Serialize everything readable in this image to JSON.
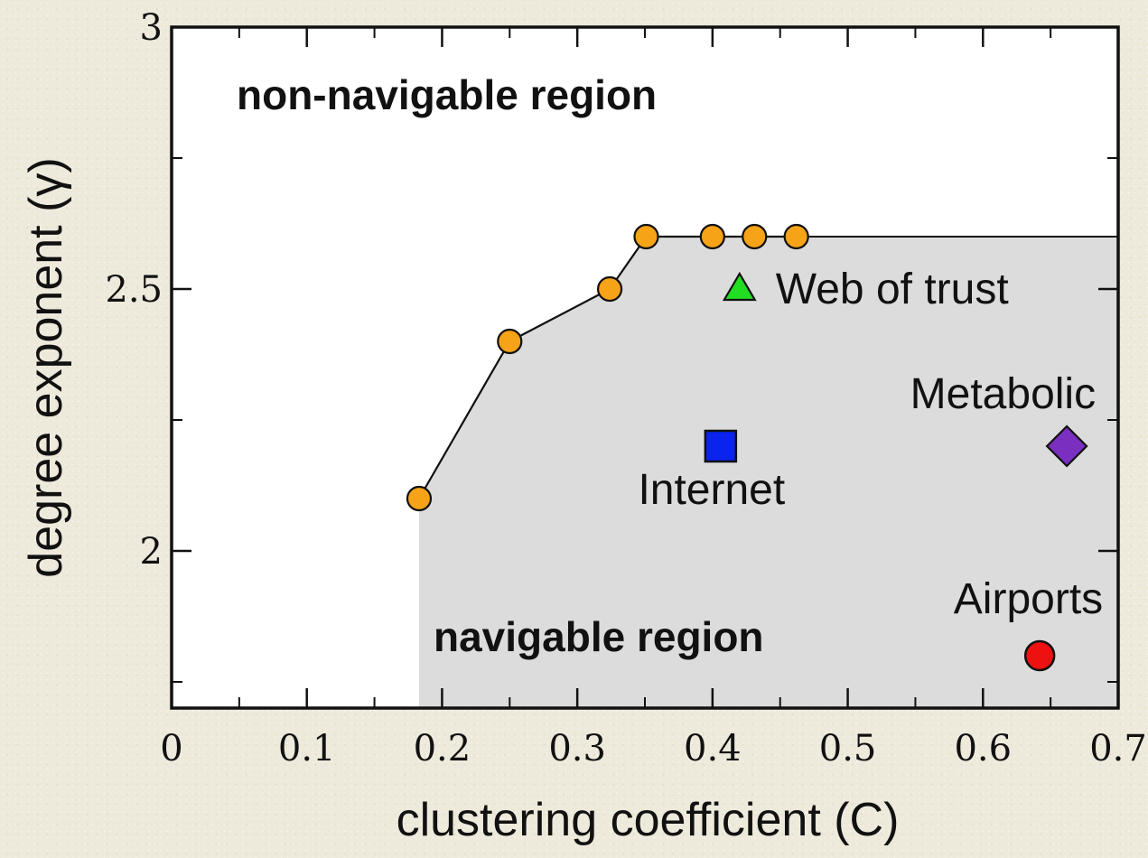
{
  "chart_data": {
    "type": "scatter",
    "title": "",
    "xlabel": "clustering coefficient (C)",
    "ylabel": "degree exponent (γ)",
    "xlim": [
      0,
      0.7
    ],
    "ylim": [
      1.7,
      3
    ],
    "x_ticks": [
      "0",
      "0.1",
      "0.2",
      "0.3",
      "0.4",
      "0.5",
      "0.6",
      "0.7"
    ],
    "x_tick_values": [
      0,
      0.1,
      0.2,
      0.3,
      0.4,
      0.5,
      0.6,
      0.7
    ],
    "y_ticks": [
      "2",
      "2.5",
      "3"
    ],
    "y_tick_values": [
      2,
      2.5,
      3
    ],
    "boundary": {
      "color": "#f7a318",
      "points": [
        {
          "x": 0.183,
          "y": 2.1
        },
        {
          "x": 0.25,
          "y": 2.4
        },
        {
          "x": 0.324,
          "y": 2.5
        },
        {
          "x": 0.351,
          "y": 2.6
        },
        {
          "x": 0.4,
          "y": 2.6
        },
        {
          "x": 0.431,
          "y": 2.6
        },
        {
          "x": 0.462,
          "y": 2.6
        }
      ]
    },
    "networks": [
      {
        "label": "Web of trust",
        "x": 0.42,
        "y": 2.5,
        "marker": "triangle",
        "color": "#22dd22"
      },
      {
        "label": "Internet",
        "x": 0.406,
        "y": 2.2,
        "marker": "square",
        "color": "#0a23ee"
      },
      {
        "label": "Metabolic",
        "x": 0.662,
        "y": 2.2,
        "marker": "diamond",
        "color": "#7a2fc0"
      },
      {
        "label": "Airports",
        "x": 0.642,
        "y": 1.8,
        "marker": "circle",
        "color": "#ee1111"
      }
    ],
    "regions": {
      "non_navigable": "non-navigable region",
      "navigable": "navigable region",
      "shade_color": "#dcdcdc"
    },
    "grid": false
  }
}
